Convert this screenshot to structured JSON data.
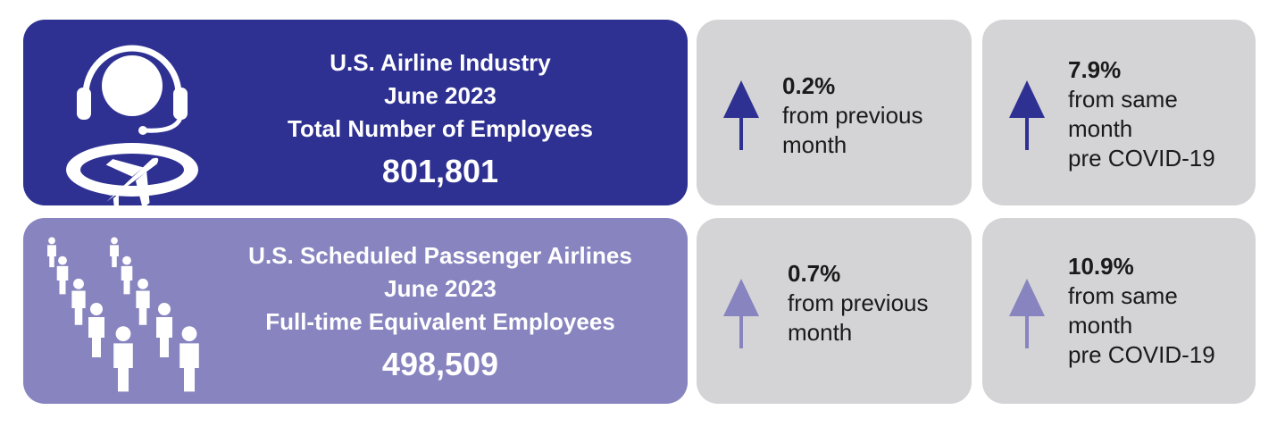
{
  "colors": {
    "dark": "#2e3192",
    "light": "#8784bf",
    "stat_bg": "#d4d4d6"
  },
  "row1": {
    "icon": "headset-airplane-icon",
    "lines": [
      "U.S. Airline Industry",
      "June 2023",
      "Total Number of Employees"
    ],
    "value": "801,801",
    "stats": [
      {
        "pct": "0.2%",
        "desc": "from previous\nmonth",
        "icon": "arrow-up-icon"
      },
      {
        "pct": "7.9%",
        "desc": "from same\nmonth\npre COVID-19",
        "icon": "arrow-up-icon"
      }
    ]
  },
  "row2": {
    "icon": "people-group-icon",
    "lines": [
      "U.S. Scheduled Passenger Airlines",
      "June 2023",
      "Full-time Equivalent Employees"
    ],
    "value": "498,509",
    "stats": [
      {
        "pct": "0.7%",
        "desc": "from previous\nmonth",
        "icon": "arrow-up-icon"
      },
      {
        "pct": "10.9%",
        "desc": "from same\nmonth\npre COVID-19",
        "icon": "arrow-up-icon"
      }
    ]
  }
}
